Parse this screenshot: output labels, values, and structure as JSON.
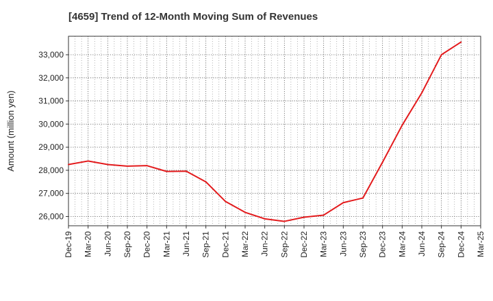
{
  "chart_data": {
    "type": "line",
    "title": "[4659]  Trend of 12-Month Moving Sum of Revenues",
    "xlabel": "",
    "ylabel": "Amount (million yen)",
    "ylim": [
      25600,
      33800
    ],
    "yticks": [
      26000,
      27000,
      28000,
      29000,
      30000,
      31000,
      32000,
      33000
    ],
    "ytick_labels": [
      "26,000",
      "27,000",
      "28,000",
      "29,000",
      "30,000",
      "31,000",
      "32,000",
      "33,000"
    ],
    "xtick_labels": [
      "Dec-19",
      "Mar-20",
      "Jun-20",
      "Sep-20",
      "Dec-20",
      "Mar-21",
      "Jun-21",
      "Sep-21",
      "Dec-21",
      "Mar-22",
      "Jun-22",
      "Sep-22",
      "Dec-22",
      "Mar-23",
      "Jun-23",
      "Sep-23",
      "Dec-23",
      "Mar-24",
      "Jun-24",
      "Sep-24",
      "Dec-24",
      "Mar-25"
    ],
    "grid": true,
    "series": [
      {
        "color": "#e31a1c",
        "x": [
          "Dec-19",
          "Mar-20",
          "Jun-20",
          "Sep-20",
          "Dec-20",
          "Mar-21",
          "Jun-21",
          "Sep-21",
          "Dec-21",
          "Mar-22",
          "Jun-22",
          "Sep-22",
          "Dec-22",
          "Mar-23",
          "Jun-23",
          "Sep-23",
          "Dec-23",
          "Mar-24",
          "Jun-24",
          "Sep-24",
          "Dec-24"
        ],
        "values": [
          28250,
          28400,
          28250,
          28180,
          28200,
          27950,
          27960,
          27500,
          26650,
          26180,
          25900,
          25790,
          25970,
          26060,
          26600,
          26800,
          28350,
          29950,
          31350,
          33000,
          33550
        ]
      }
    ]
  }
}
